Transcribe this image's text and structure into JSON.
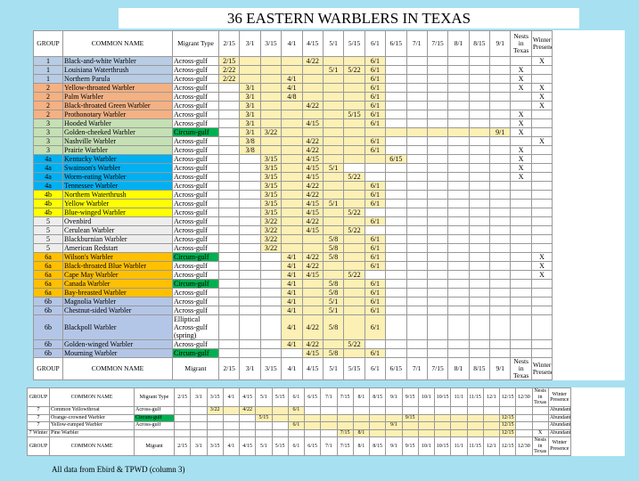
{
  "title": "36 EASTERN WARBLERS IN TEXAS",
  "group_colors": {
    "1": "#b8cce4",
    "2": "#f4b183",
    "3": "#c5e0b4",
    "4a": "#00b0f0",
    "4b": "#ffff00",
    "5": "#ededed",
    "6a": "#ffc000",
    "6b": "#b4c6e7",
    "7": "#ffffff",
    "7 Winter": "#ffffff"
  },
  "migrant_colors": {
    "Circum-gulf": "#00b050"
  },
  "range_color": "#fdf0b4",
  "main_table": {
    "columns": [
      "GROUP",
      "COMMON NAME",
      "Migrant Type",
      "2/15",
      "3/1",
      "3/15",
      "4/1",
      "4/15",
      "5/1",
      "5/15",
      "6/1",
      "6/15",
      "7/1",
      "7/15",
      "8/1",
      "8/15",
      "9/1",
      "Nests in Texas",
      "Winter Presence"
    ],
    "footer": [
      "GROUP",
      "COMMON NAME",
      "Migrant",
      "2/15",
      "3/1",
      "3/15",
      "4/1",
      "4/15",
      "5/1",
      "5/15",
      "6/1",
      "6/15",
      "7/1",
      "7/15",
      "8/1",
      "8/15",
      "9/1",
      "Nests in Texas",
      "Winter Presence"
    ],
    "rows": [
      {
        "group": "1",
        "name": "Black-and-white Warbler",
        "migrant": "Across-gulf",
        "dates": {
          "2/15": "2/15",
          "4/15": "4/22",
          "6/1": "6/1"
        },
        "winter": "X"
      },
      {
        "group": "1",
        "name": "Louisiana Waterthrush",
        "migrant": "Across-gulf",
        "dates": {
          "2/15": "2/22",
          "5/1": "5/1",
          "5/15": "5/22",
          "6/1": "6/1"
        },
        "nests": "X"
      },
      {
        "group": "1",
        "name": "Northern Parula",
        "migrant": "Across-gulf",
        "dates": {
          "2/15": "2/22",
          "4/1": "4/1",
          "6/1": "6/1"
        },
        "nests": "X"
      },
      {
        "group": "2",
        "name": "Yellow-throated Warbler",
        "migrant": "Across-gulf",
        "dates": {
          "3/1": "3/1",
          "4/1": "4/1",
          "6/1": "6/1"
        },
        "nests": "X",
        "winter": "X"
      },
      {
        "group": "2",
        "name": "Palm Warbler",
        "migrant": "Across-gulf",
        "dates": {
          "3/1": "3/1",
          "4/1": "4/8",
          "6/1": "6/1"
        },
        "winter": "X"
      },
      {
        "group": "2",
        "name": "Black-throated Green Warbler",
        "migrant": "Across-gulf",
        "dates": {
          "3/1": "3/1",
          "4/15": "4/22",
          "6/1": "6/1"
        },
        "winter": "X"
      },
      {
        "group": "2",
        "name": "Prothonotary Warbler",
        "migrant": "Across-gulf",
        "dates": {
          "3/1": "3/1",
          "5/15": "5/15",
          "6/1": "6/1"
        },
        "nests": "X"
      },
      {
        "group": "3",
        "name": "Hooded Warbler",
        "migrant": "Across-gulf",
        "dates": {
          "3/1": "3/1",
          "4/15": "4/15",
          "6/1": "6/1"
        },
        "nests": "X"
      },
      {
        "group": "3",
        "name": "Golden-cheeked Warbler",
        "migrant": "Circum-gulf",
        "dates": {
          "3/1": "3/1",
          "3/15": "3/22",
          "9/1": "9/1"
        },
        "nests": "X"
      },
      {
        "group": "3",
        "name": "Nashville Warbler",
        "migrant": "Across-gulf",
        "dates": {
          "3/1": "3/8",
          "4/15": "4/22",
          "6/1": "6/1"
        },
        "winter": "X"
      },
      {
        "group": "3",
        "name": "Prairie Warbler",
        "migrant": "Across-gulf",
        "dates": {
          "3/1": "3/8",
          "4/15": "4/22",
          "6/1": "6/1"
        },
        "nests": "X"
      },
      {
        "group": "4a",
        "name": "Kentucky Warbler",
        "migrant": "Across-gulf",
        "dates": {
          "3/15": "3/15",
          "4/15": "4/15",
          "6/15": "6/15"
        },
        "nests": "X"
      },
      {
        "group": "4a",
        "name": "Swainson's Warbler",
        "migrant": "Across-gulf",
        "dates": {
          "3/15": "3/15",
          "4/15": "4/15",
          "5/1": "5/1"
        },
        "nests": "X"
      },
      {
        "group": "4a",
        "name": "Worm-eating Warbler",
        "migrant": "Across-gulf",
        "dates": {
          "3/15": "3/15",
          "4/15": "4/15",
          "5/15": "5/22"
        },
        "nests": "X"
      },
      {
        "group": "4a",
        "name": "Tennessee Warbler",
        "migrant": "Across-gulf",
        "dates": {
          "3/15": "3/15",
          "4/15": "4/22",
          "6/1": "6/1"
        }
      },
      {
        "group": "4b",
        "name": "Northern Waterthrush",
        "migrant": "Across-gulf",
        "dates": {
          "3/15": "3/15",
          "4/15": "4/22",
          "6/1": "6/1"
        }
      },
      {
        "group": "4b",
        "name": "Yellow Warbler",
        "migrant": "Across-gulf",
        "dates": {
          "3/15": "3/15",
          "4/15": "4/15",
          "5/1": "5/1",
          "6/1": "6/1"
        }
      },
      {
        "group": "4b",
        "name": "Blue-winged Warbler",
        "migrant": "Across-gulf",
        "dates": {
          "3/15": "3/15",
          "4/15": "4/15",
          "5/15": "5/22"
        }
      },
      {
        "group": "5",
        "name": "Ovenbird",
        "migrant": "Across-gulf",
        "dates": {
          "3/15": "3/22",
          "4/15": "4/22",
          "6/1": "6/1"
        }
      },
      {
        "group": "5",
        "name": "Cerulean Warbler",
        "migrant": "Across-gulf",
        "dates": {
          "3/15": "3/22",
          "4/15": "4/15",
          "5/15": "5/22"
        }
      },
      {
        "group": "5",
        "name": "Blackburnian Warbler",
        "migrant": "Across-gulf",
        "dates": {
          "3/15": "3/22",
          "5/1": "5/8",
          "6/1": "6/1"
        }
      },
      {
        "group": "5",
        "name": "American Redstart",
        "migrant": "Across-gulf",
        "dates": {
          "3/15": "3/22",
          "5/1": "5/8",
          "6/1": "6/1"
        }
      },
      {
        "group": "6a",
        "name": "Wilson's Warbler",
        "migrant": "Circum-gulf",
        "dates": {
          "4/1": "4/1",
          "4/15": "4/22",
          "5/1": "5/8",
          "6/1": "6/1"
        },
        "winter": "X"
      },
      {
        "group": "6a",
        "name": "Black-throated Blue Warbler",
        "migrant": "Across-gulf",
        "dates": {
          "4/1": "4/1",
          "4/15": "4/22",
          "6/1": "6/1"
        },
        "winter": "X"
      },
      {
        "group": "6a",
        "name": "Cape May Warbler",
        "migrant": "Across-gulf",
        "dates": {
          "4/1": "4/1",
          "4/15": "4/15",
          "5/15": "5/22"
        },
        "winter": "X"
      },
      {
        "group": "6a",
        "name": "Canada Warbler",
        "migrant": "Circum-gulf",
        "dates": {
          "4/1": "4/1",
          "5/1": "5/8",
          "6/1": "6/1"
        }
      },
      {
        "group": "6a",
        "name": "Bay-breasted Warbler",
        "migrant": "Across-gulf",
        "dates": {
          "4/1": "4/1",
          "5/1": "5/8",
          "6/1": "6/1"
        }
      },
      {
        "group": "6b",
        "name": "Magnolia Warbler",
        "migrant": "Across-gulf",
        "dates": {
          "4/1": "4/1",
          "5/1": "5/1",
          "6/1": "6/1"
        }
      },
      {
        "group": "6b",
        "name": "Chestnut-sided Warbler",
        "migrant": "Across-gulf",
        "dates": {
          "4/1": "4/1",
          "5/1": "5/1",
          "6/1": "6/1"
        }
      },
      {
        "group": "6b",
        "name": "Blackpoll Warbler",
        "migrant": "Elliptical Across-gulf (spring)",
        "dates": {
          "4/1": "4/1",
          "4/15": "4/22",
          "5/1": "5/8",
          "6/1": "6/1"
        }
      },
      {
        "group": "6b",
        "name": "Golden-winged Warbler",
        "migrant": "Across-gulf",
        "dates": {
          "4/1": "4/1",
          "4/15": "4/22",
          "5/15": "5/22"
        }
      },
      {
        "group": "6b",
        "name": "Mourning Warbler",
        "migrant": "Circum-gulf",
        "dates": {
          "4/15": "4/15",
          "5/1": "5/8",
          "6/1": "6/1"
        }
      }
    ]
  },
  "second_table": {
    "columns": [
      "GROUP",
      "COMMON NAME",
      "Migrant Type",
      "2/15",
      "3/1",
      "3/15",
      "4/1",
      "4/15",
      "5/1",
      "5/15",
      "6/1",
      "6/15",
      "7/1",
      "7/15",
      "8/1",
      "8/15",
      "9/1",
      "9/15",
      "10/1",
      "10/15",
      "11/1",
      "11/15",
      "12/1",
      "12/15",
      "12/30",
      "Nests in Texas",
      "Winter Presence"
    ],
    "footer": [
      "GROUP",
      "COMMON NAME",
      "Migrant",
      "2/15",
      "3/1",
      "3/15",
      "4/1",
      "4/15",
      "5/1",
      "5/15",
      "6/1",
      "6/15",
      "7/1",
      "7/15",
      "8/1",
      "8/15",
      "9/1",
      "9/15",
      "10/1",
      "10/15",
      "11/1",
      "11/15",
      "12/1",
      "12/15",
      "12/30",
      "Nests in Texas",
      "Winter Presence"
    ],
    "rows": [
      {
        "group": "7",
        "name": "Common Yellowthroat",
        "migrant": "Across-gulf",
        "dates": {
          "3/15": "3/22",
          "4/15": "4/22",
          "6/1": "6/1"
        },
        "winter": "Abundant"
      },
      {
        "group": "7",
        "name": "Orange-crowned Warbler",
        "migrant": "Circum-gulf",
        "dates": {
          "5/1": "5/15",
          "9/15": "9/15",
          "12/15": "12/15"
        },
        "winter": "Abundant"
      },
      {
        "group": "7",
        "name": "Yellow-rumped Warbler",
        "migrant": "Across-gulf",
        "dates": {
          "6/1": "6/1",
          "9/1": "9/1",
          "12/15": "12/15"
        },
        "winter": "Abundant"
      },
      {
        "group": "7 Winter",
        "name": "Pine Warbler",
        "dates": {
          "7/15": "7/15",
          "8/1": "8/1",
          "12/15": "12/15"
        },
        "nests": "X",
        "winter": "Abundant"
      }
    ]
  },
  "note": "All data from Ebird & TPWD (column 3)"
}
